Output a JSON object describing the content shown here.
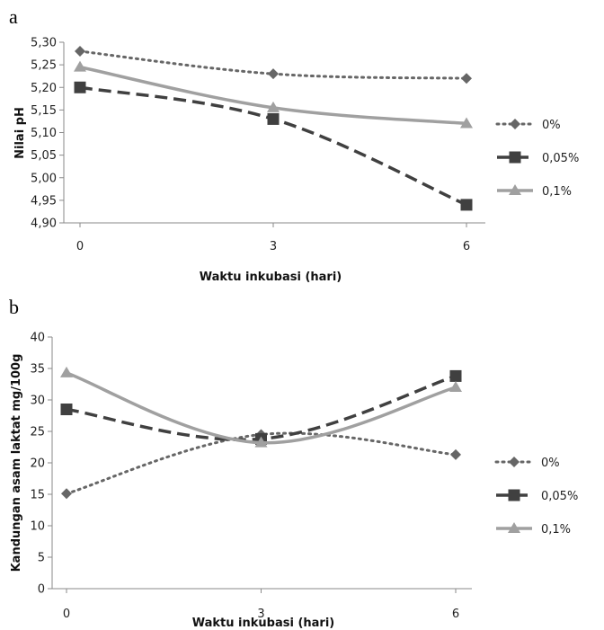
{
  "chart_data": [
    {
      "panel": "a",
      "type": "line",
      "x": [
        0,
        3,
        6
      ],
      "xticks": [
        "0",
        "3",
        "6"
      ],
      "xlabel": "Waktu inkubasi (hari)",
      "ylabel": "Nilai pH",
      "ylim": [
        4.9,
        5.3
      ],
      "yticks": [
        "4,90",
        "4,95",
        "5,00",
        "5,05",
        "5,10",
        "5,15",
        "5,20",
        "5,25",
        "5,30"
      ],
      "grid": false,
      "legend_position": "right",
      "series": [
        {
          "name": "0%",
          "values": [
            5.28,
            5.23,
            5.22
          ],
          "color": "#666666",
          "dash": "dotted",
          "marker": "diamond"
        },
        {
          "name": "0,05%",
          "values": [
            5.2,
            5.13,
            4.94
          ],
          "color": "#404040",
          "dash": "dashed",
          "marker": "square"
        },
        {
          "name": "0,1%",
          "values": [
            5.245,
            5.155,
            5.12
          ],
          "color": "#a0a0a0",
          "dash": "solid",
          "marker": "triangle"
        }
      ]
    },
    {
      "panel": "b",
      "type": "line",
      "x": [
        0,
        3,
        6
      ],
      "xticks": [
        "0",
        "3",
        "6"
      ],
      "xlabel": "Waktu inkubasi (hari)",
      "ylabel": "Kandungan asam laktat mg/100g",
      "ylim": [
        0,
        40
      ],
      "yticks": [
        "0",
        "5",
        "10",
        "15",
        "20",
        "25",
        "30",
        "35",
        "40"
      ],
      "grid": false,
      "legend_position": "right",
      "series": [
        {
          "name": "0%",
          "values": [
            15.1,
            24.5,
            21.3
          ],
          "color": "#666666",
          "dash": "dotted",
          "marker": "diamond"
        },
        {
          "name": "0,05%",
          "values": [
            28.5,
            23.8,
            33.8
          ],
          "color": "#404040",
          "dash": "dashed",
          "marker": "square"
        },
        {
          "name": "0,1%",
          "values": [
            34.3,
            23.2,
            32.0
          ],
          "color": "#a0a0a0",
          "dash": "solid",
          "marker": "triangle"
        }
      ]
    }
  ]
}
